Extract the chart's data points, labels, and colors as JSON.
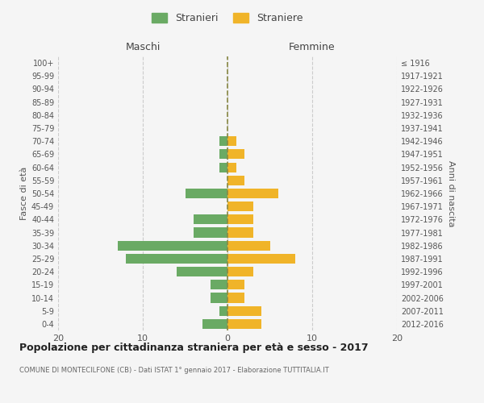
{
  "age_groups_bottom_to_top": [
    "0-4",
    "5-9",
    "10-14",
    "15-19",
    "20-24",
    "25-29",
    "30-34",
    "35-39",
    "40-44",
    "45-49",
    "50-54",
    "55-59",
    "60-64",
    "65-69",
    "70-74",
    "75-79",
    "80-84",
    "85-89",
    "90-94",
    "95-99",
    "100+"
  ],
  "birth_years_bottom_to_top": [
    "2012-2016",
    "2007-2011",
    "2002-2006",
    "1997-2001",
    "1992-1996",
    "1987-1991",
    "1982-1986",
    "1977-1981",
    "1972-1976",
    "1967-1971",
    "1962-1966",
    "1957-1961",
    "1952-1956",
    "1947-1951",
    "1942-1946",
    "1937-1941",
    "1932-1936",
    "1927-1931",
    "1922-1926",
    "1917-1921",
    "≤ 1916"
  ],
  "maschi_bottom_to_top": [
    3,
    1,
    2,
    2,
    6,
    12,
    13,
    4,
    4,
    0,
    5,
    0,
    1,
    1,
    1,
    0,
    0,
    0,
    0,
    0,
    0
  ],
  "femmine_bottom_to_top": [
    4,
    4,
    2,
    2,
    3,
    8,
    5,
    3,
    3,
    3,
    6,
    2,
    1,
    2,
    1,
    0,
    0,
    0,
    0,
    0,
    0
  ],
  "color_maschi": "#6aaa64",
  "color_femmine": "#f0b429",
  "title_main": "Popolazione per cittadinanza straniera per età e sesso - 2017",
  "title_sub": "COMUNE DI MONTECILFONE (CB) - Dati ISTAT 1° gennaio 2017 - Elaborazione TUTTITALIA.IT",
  "legend_maschi": "Stranieri",
  "legend_femmine": "Straniere",
  "label_maschi": "Maschi",
  "label_femmine": "Femmine",
  "ylabel_left": "Fasce di età",
  "ylabel_right": "Anni di nascita",
  "xlim": 20,
  "bg_color": "#f5f5f5",
  "grid_color": "#cccccc"
}
